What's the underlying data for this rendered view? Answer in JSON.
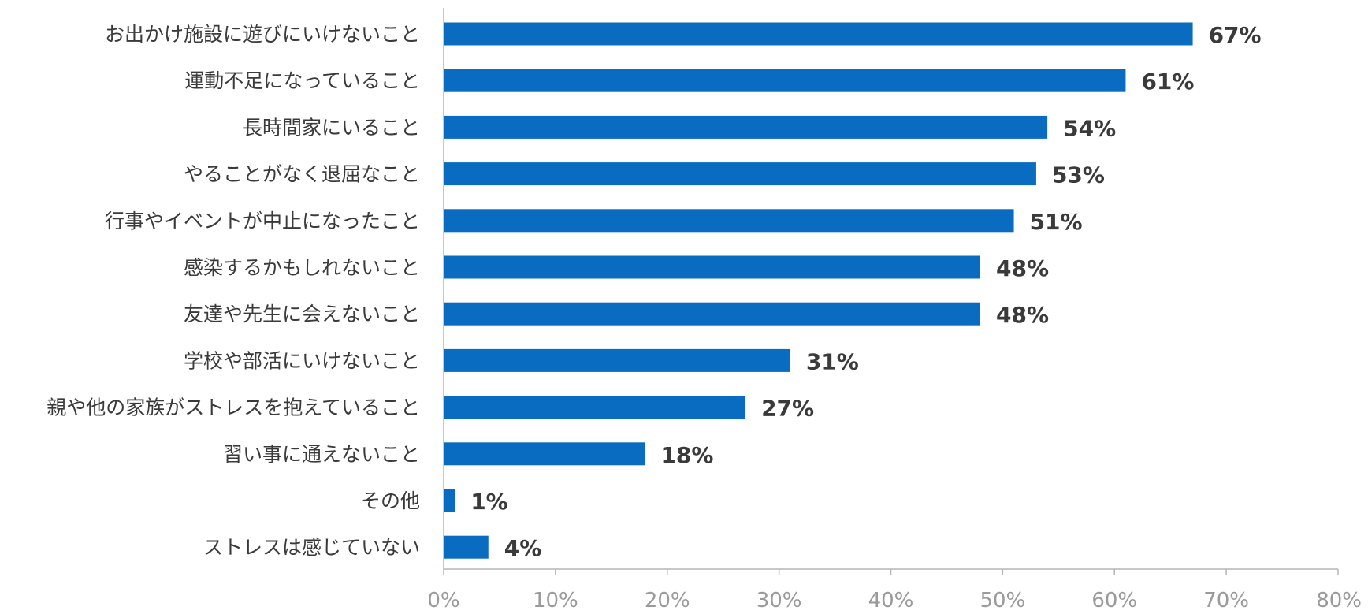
{
  "chart_data": {
    "type": "bar",
    "orientation": "horizontal",
    "categories": [
      "お出かけ施設に遊びにいけないこと",
      "運動不足になっていること",
      "長時間家にいること",
      "やることがなく退屈なこと",
      "行事やイベントが中止になったこと",
      "感染するかもしれないこと",
      "友達や先生に会えないこと",
      "学校や部活にいけないこと",
      "親や他の家族がストレスを抱えていること",
      "習い事に通えないこと",
      "その他",
      "ストレスは感じていない"
    ],
    "values": [
      67,
      61,
      54,
      53,
      51,
      48,
      48,
      31,
      27,
      18,
      1,
      4
    ],
    "value_labels": [
      "67%",
      "61%",
      "54%",
      "53%",
      "51%",
      "48%",
      "48%",
      "31%",
      "27%",
      "18%",
      "1%",
      "4%"
    ],
    "xlim": [
      0,
      80
    ],
    "xticks": [
      0,
      10,
      20,
      30,
      40,
      50,
      60,
      70,
      80
    ],
    "xtick_labels": [
      "0%",
      "10%",
      "20%",
      "30%",
      "40%",
      "50%",
      "60%",
      "70%",
      "80%"
    ],
    "title": "",
    "xlabel": "",
    "ylabel": "",
    "grid": false,
    "legend": "none",
    "colors": {
      "bar": "#0a6cc0",
      "axis": "#b5b5b5",
      "category_text": "#3a3a3a",
      "value_text": "#3a3a3a",
      "tick_text": "#9a9a9a"
    }
  }
}
